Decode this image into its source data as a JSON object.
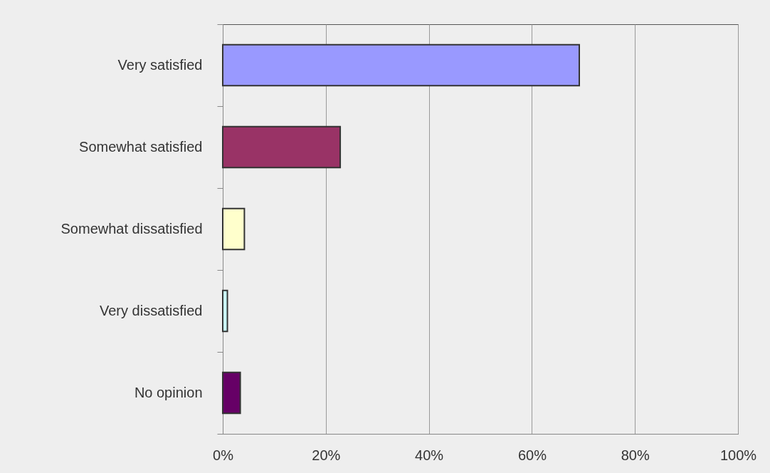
{
  "chart_data": {
    "type": "bar",
    "orientation": "horizontal",
    "categories": [
      "Very satisfied",
      "Somewhat satisfied",
      "Somewhat dissatisfied",
      "Very dissatisfied",
      "No opinion"
    ],
    "values": [
      69.2,
      22.8,
      4.2,
      0.9,
      3.4
    ],
    "colors": [
      "#9999ff",
      "#993366",
      "#ffffcc",
      "#ccffff",
      "#660066"
    ],
    "xlim": [
      0,
      100
    ],
    "xticks": [
      {
        "value": 0,
        "label": "0%"
      },
      {
        "value": 20,
        "label": "20%"
      },
      {
        "value": 40,
        "label": "40%"
      },
      {
        "value": 60,
        "label": "60%"
      },
      {
        "value": 80,
        "label": "80%"
      },
      {
        "value": 100,
        "label": "100%"
      }
    ],
    "grid": "x"
  }
}
